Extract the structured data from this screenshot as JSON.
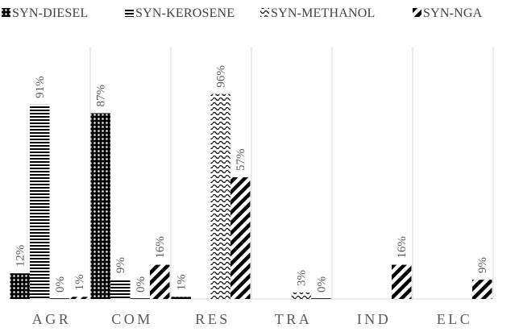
{
  "chart_data": {
    "type": "bar",
    "title": "",
    "xlabel": "",
    "ylabel": "",
    "ylim": [
      0,
      100
    ],
    "grid": "vertical-separators",
    "legend_position": "top",
    "categories": [
      "AGR",
      "COM",
      "RES",
      "TRA",
      "IND",
      "ELC"
    ],
    "series": [
      {
        "name": "SYN-DIESEL",
        "pattern": "dots",
        "color": "#000000",
        "values": [
          12,
          87,
          1,
          null,
          null,
          null
        ],
        "labels": [
          "12%",
          "87%",
          "1%",
          "",
          "",
          ""
        ]
      },
      {
        "name": "SYN-KEROSENE",
        "pattern": "horizontal-lines",
        "color": "#000000",
        "values": [
          91,
          9,
          null,
          null,
          null,
          null
        ],
        "labels": [
          "91%",
          "9%",
          "",
          "",
          "",
          ""
        ]
      },
      {
        "name": "SYN-METHANOL",
        "pattern": "waves",
        "color": "#000000",
        "values": [
          0,
          0,
          96,
          3,
          null,
          null
        ],
        "labels": [
          "0%",
          "0%",
          "96%",
          "3%",
          "",
          ""
        ]
      },
      {
        "name": "SYN-NGA",
        "pattern": "diagonal-stripes",
        "color": "#000000",
        "values": [
          1,
          16,
          57,
          0,
          16,
          9
        ],
        "labels": [
          "1%",
          "16%",
          "57%",
          "0%",
          "16%",
          "9%"
        ]
      }
    ]
  }
}
